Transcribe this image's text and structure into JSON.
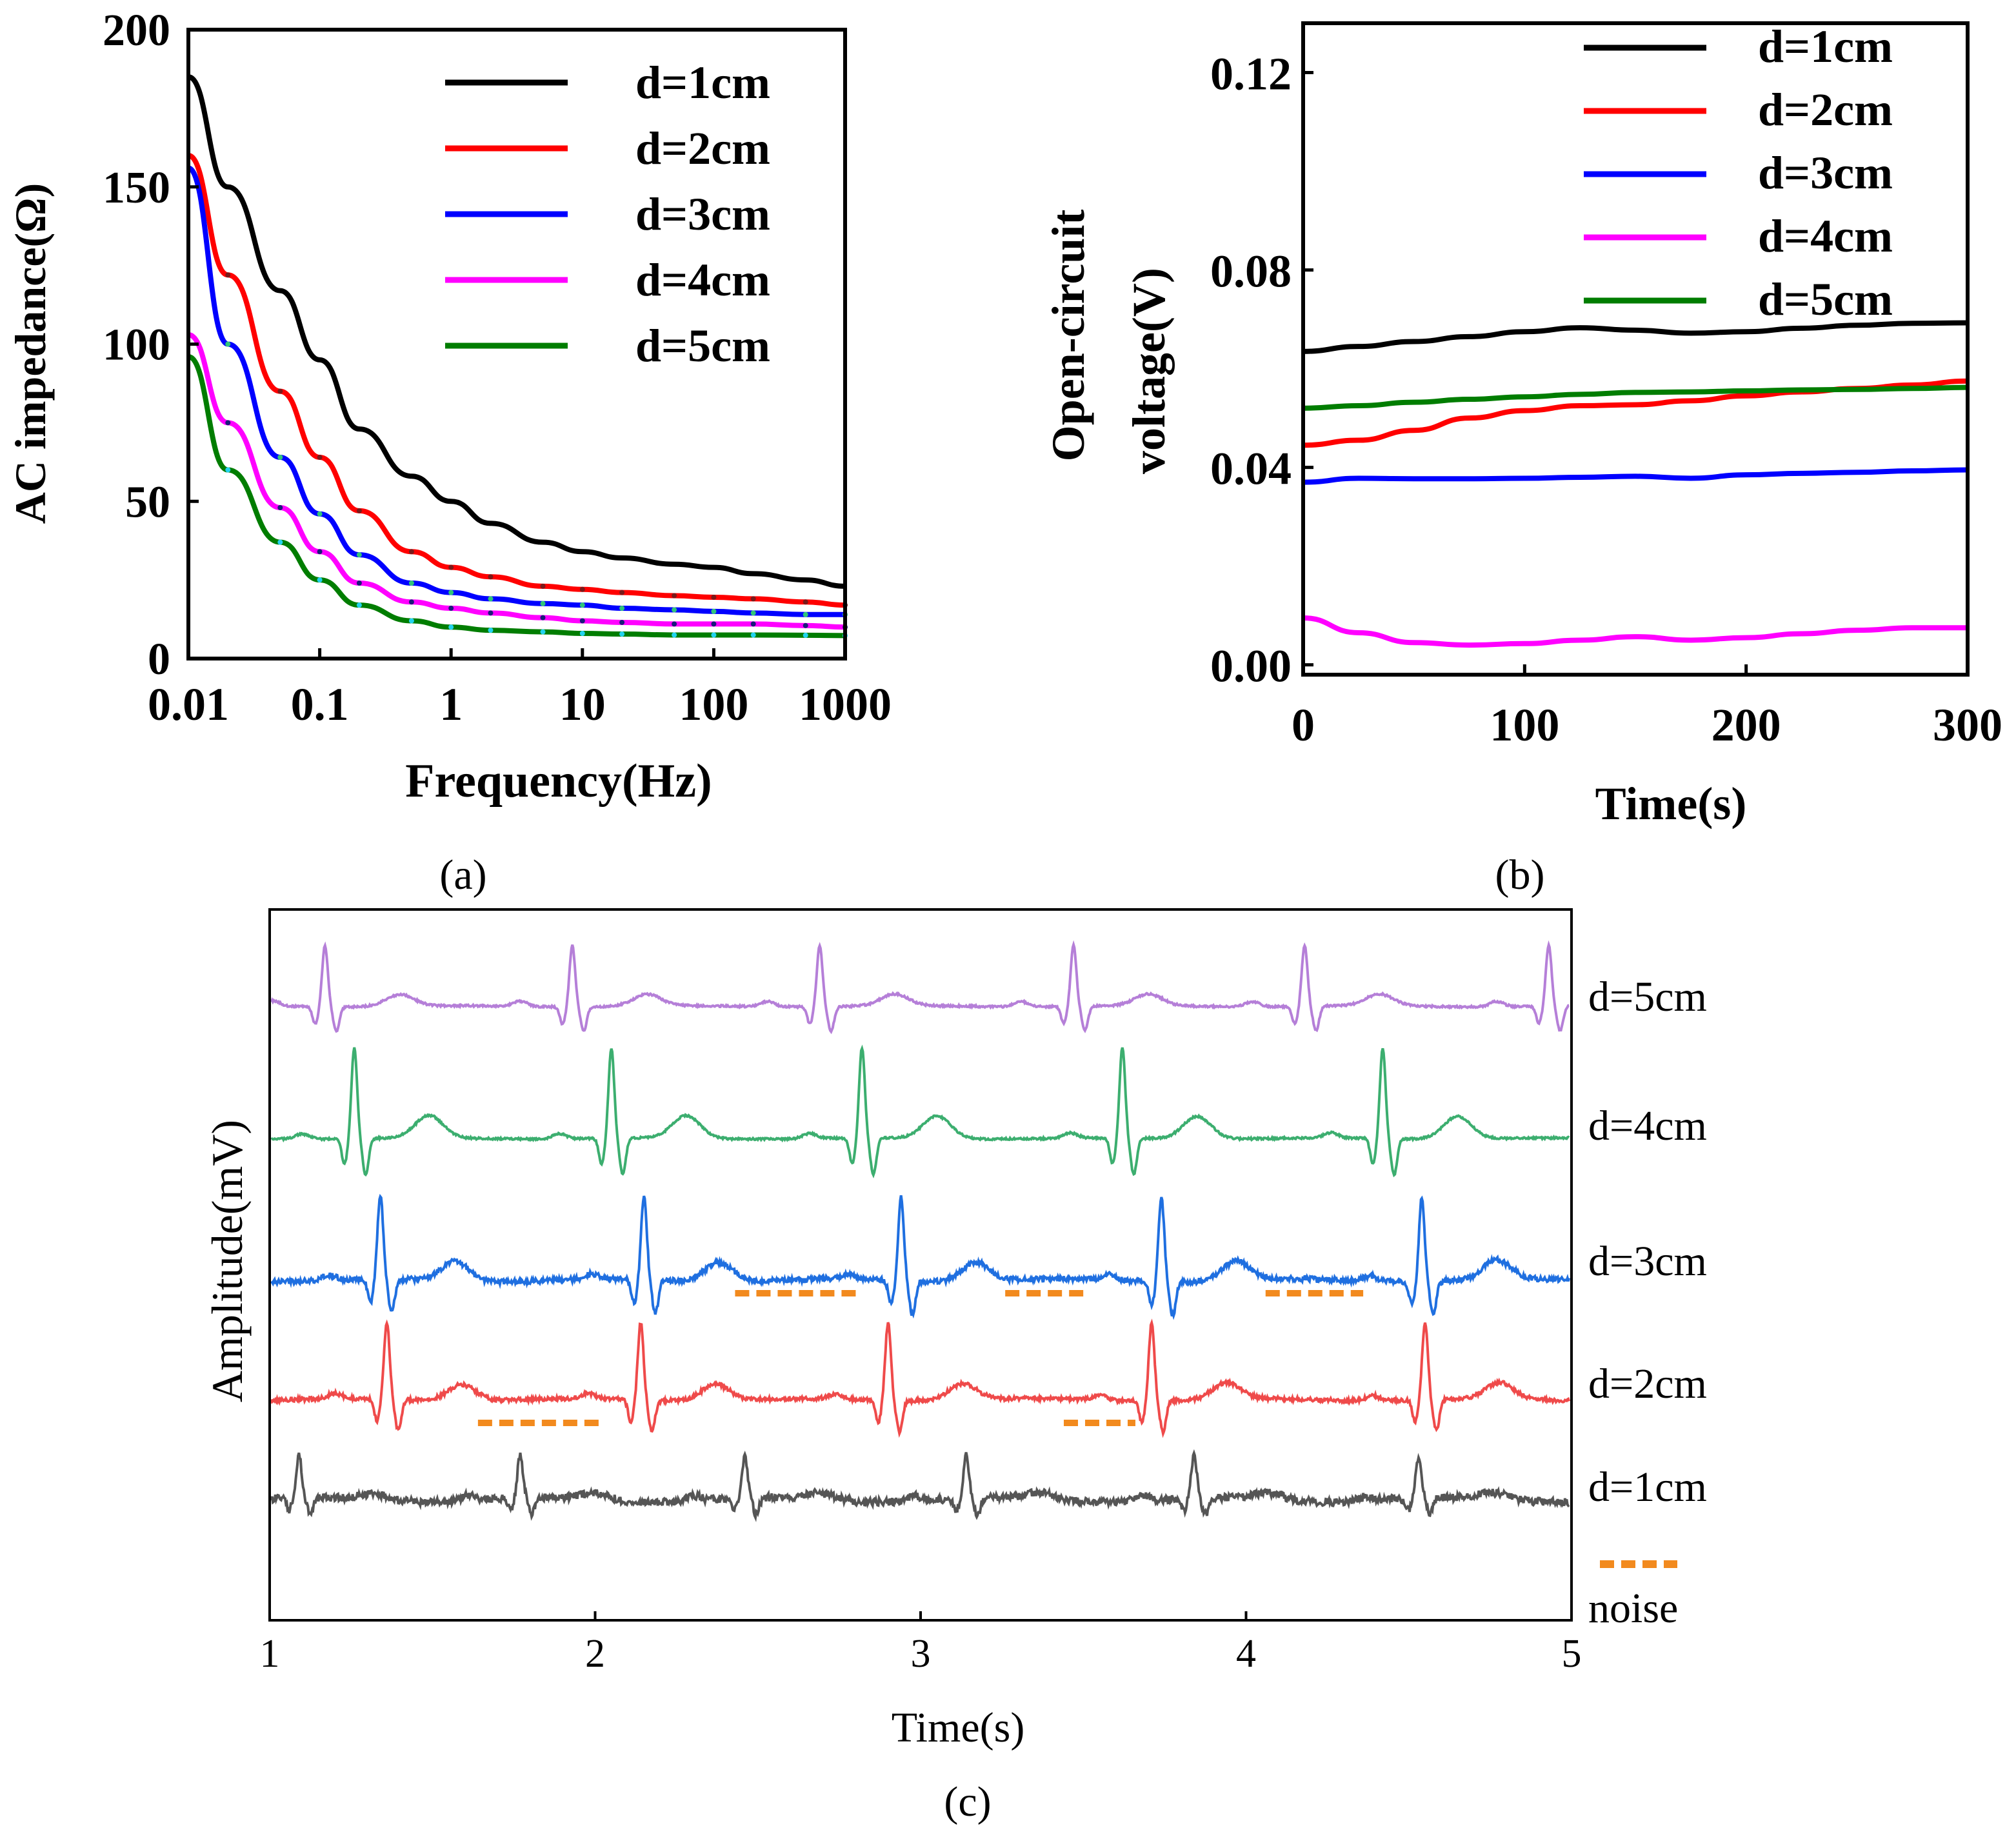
{
  "chart_data": [
    {
      "id": "a",
      "type": "line",
      "caption": "(a)",
      "xlabel": "Frequency(Hz)",
      "ylabel": "AC impedance(Ω)",
      "xscale": "log",
      "xlim": [
        0.01,
        1000
      ],
      "ylim": [
        0,
        200
      ],
      "xticks": [
        0.01,
        0.1,
        1,
        10,
        100,
        1000
      ],
      "xtick_labels": [
        "0.01",
        "0.1",
        "1",
        "10",
        "100",
        "1000"
      ],
      "yticks": [
        0,
        50,
        100,
        150,
        200
      ],
      "ytick_labels": [
        "0",
        "50",
        "100",
        "150",
        "200"
      ],
      "legend_position": "top-right",
      "x": [
        0.01,
        0.02,
        0.05,
        0.1,
        0.2,
        0.5,
        1,
        2,
        5,
        10,
        20,
        50,
        100,
        200,
        500,
        1000
      ],
      "series": [
        {
          "name": "d=1cm",
          "color": "#000000",
          "marker": "none",
          "values": [
            185,
            150,
            117,
            95,
            73,
            58,
            50,
            43,
            37,
            34,
            32,
            30,
            29,
            27,
            25,
            23
          ]
        },
        {
          "name": "d=2cm",
          "color": "#ff0000",
          "marker": "dash",
          "values": [
            160,
            122,
            85,
            64,
            47,
            34,
            29,
            26,
            23,
            22,
            21,
            20,
            19.5,
            19,
            18,
            17
          ]
        },
        {
          "name": "d=3cm",
          "color": "#0000ff",
          "marker": "triangle",
          "values": [
            156,
            100,
            64,
            46,
            33,
            24,
            21,
            19,
            17.5,
            17,
            16,
            15.5,
            15,
            14.5,
            14,
            14
          ]
        },
        {
          "name": "d=4cm",
          "color": "#ff00ff",
          "marker": "triangle-down",
          "values": [
            103,
            75,
            48,
            34,
            24,
            18,
            16,
            14.5,
            13,
            12,
            11.5,
            11,
            11,
            11,
            10.5,
            10
          ]
        },
        {
          "name": "d=5cm",
          "color": "#007d00",
          "marker": "dot",
          "values": [
            96,
            60,
            37,
            25,
            17,
            12,
            10,
            9,
            8.5,
            8,
            7.8,
            7.5,
            7.5,
            7.5,
            7.4,
            7.3
          ]
        }
      ]
    },
    {
      "id": "b",
      "type": "line",
      "caption": "(b)",
      "xlabel": "Time(s)",
      "ylabel_line1": "Open-circuit",
      "ylabel_line2": "voltage(V)",
      "xlim": [
        0,
        300
      ],
      "ylim": [
        -0.002,
        0.13
      ],
      "xticks": [
        0,
        100,
        200,
        300
      ],
      "xtick_labels": [
        "0",
        "100",
        "200",
        "300"
      ],
      "yticks": [
        0.0,
        0.04,
        0.08,
        0.12
      ],
      "ytick_labels": [
        "0.00",
        "0.04",
        "0.08",
        "0.12"
      ],
      "legend_position": "top-right",
      "x": [
        0,
        25,
        50,
        75,
        100,
        125,
        150,
        175,
        200,
        225,
        250,
        275,
        300
      ],
      "series": [
        {
          "name": "d=1cm",
          "color": "#000000",
          "values": [
            0.0635,
            0.0645,
            0.0655,
            0.0665,
            0.0675,
            0.0683,
            0.0678,
            0.0672,
            0.0675,
            0.0682,
            0.0688,
            0.0692,
            0.0693
          ]
        },
        {
          "name": "d=2cm",
          "color": "#ff0000",
          "values": [
            0.0445,
            0.0455,
            0.0475,
            0.05,
            0.0515,
            0.0525,
            0.0527,
            0.0535,
            0.0545,
            0.0553,
            0.056,
            0.0567,
            0.0575
          ]
        },
        {
          "name": "d=3cm",
          "color": "#0000ff",
          "values": [
            0.037,
            0.0378,
            0.0377,
            0.0377,
            0.0378,
            0.038,
            0.0382,
            0.0378,
            0.0385,
            0.0388,
            0.039,
            0.0393,
            0.0395
          ]
        },
        {
          "name": "d=4cm",
          "color": "#ff00ff",
          "values": [
            0.0095,
            0.0065,
            0.0045,
            0.004,
            0.0043,
            0.005,
            0.0057,
            0.005,
            0.0055,
            0.0063,
            0.007,
            0.0075,
            0.0075
          ]
        },
        {
          "name": "d=5cm",
          "color": "#007d00",
          "values": [
            0.052,
            0.0525,
            0.0532,
            0.0538,
            0.0543,
            0.0548,
            0.0552,
            0.0553,
            0.0555,
            0.0557,
            0.0558,
            0.056,
            0.0562
          ]
        }
      ]
    },
    {
      "id": "c",
      "type": "line",
      "caption": "(c)",
      "xlabel": "Time(s)",
      "ylabel": "Amplitude(mV)",
      "xlim": [
        1,
        5
      ],
      "xticks": [
        1,
        2,
        3,
        4,
        5
      ],
      "xtick_labels": [
        "1",
        "2",
        "3",
        "4",
        "5"
      ],
      "y_tick_labels": "none",
      "series": [
        {
          "name": "d=5cm",
          "color": "#b57fd8",
          "r_peaks_s": [
            1.17,
            1.93,
            2.69,
            3.47,
            4.18,
            4.93
          ],
          "peak_height": 0.95,
          "t_wave": 0.18,
          "noise": 0.015
        },
        {
          "name": "d=4cm",
          "color": "#3cae6f",
          "r_peaks_s": [
            1.26,
            2.05,
            2.82,
            3.62,
            4.42
          ],
          "peak_height": 1.4,
          "t_wave": 0.35,
          "noise": 0.015
        },
        {
          "name": "d=3cm",
          "color": "#1f6fe0",
          "r_peaks_s": [
            1.34,
            2.15,
            2.94,
            3.74,
            4.54
          ],
          "peak_height": 1.3,
          "t_wave": 0.3,
          "noise": 0.04
        },
        {
          "name": "d=2cm",
          "color": "#ef4a4a",
          "r_peaks_s": [
            1.36,
            2.14,
            2.9,
            3.71,
            4.55
          ],
          "peak_height": 1.2,
          "t_wave": 0.25,
          "noise": 0.03
        },
        {
          "name": "d=1cm",
          "color": "#555555",
          "r_peaks_s": [
            1.09,
            1.77,
            2.46,
            3.14,
            3.84,
            4.53
          ],
          "peak_height": 0.65,
          "t_wave": 0.1,
          "noise": 0.06
        }
      ],
      "noise_marks": [
        {
          "trace": "d=3cm",
          "x_range": [
            2.43,
            2.82
          ]
        },
        {
          "trace": "d=3cm",
          "x_range": [
            3.26,
            3.51
          ]
        },
        {
          "trace": "d=3cm",
          "x_range": [
            4.06,
            4.36
          ]
        },
        {
          "trace": "d=2cm",
          "x_range": [
            1.64,
            2.03
          ]
        },
        {
          "trace": "d=2cm",
          "x_range": [
            3.44,
            3.66
          ]
        }
      ],
      "noise_legend": {
        "label": "noise",
        "color": "#f28a1e"
      }
    }
  ]
}
